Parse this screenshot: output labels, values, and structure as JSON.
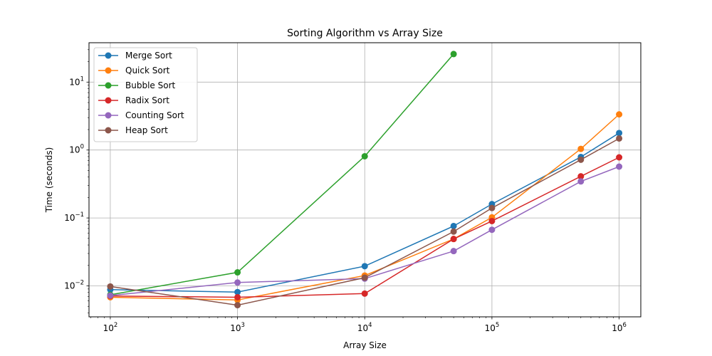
{
  "chart_data": {
    "type": "line",
    "title": "Sorting Algorithm vs Array Size",
    "xlabel": "Array Size",
    "ylabel": "Time (seconds)",
    "xscale": "log",
    "yscale": "log",
    "xlim": [
      68,
      1480000
    ],
    "ylim": [
      0.0035,
      38
    ],
    "grid": true,
    "legend_position": "top-left",
    "x_ticks": [
      {
        "value": 100,
        "base": "10",
        "exp": "2"
      },
      {
        "value": 1000,
        "base": "10",
        "exp": "3"
      },
      {
        "value": 10000,
        "base": "10",
        "exp": "4"
      },
      {
        "value": 100000,
        "base": "10",
        "exp": "5"
      },
      {
        "value": 1000000,
        "base": "10",
        "exp": "6"
      }
    ],
    "y_ticks": [
      {
        "value": 0.01,
        "base": "10",
        "exp": "−2"
      },
      {
        "value": 0.1,
        "base": "10",
        "exp": "−1"
      },
      {
        "value": 1,
        "base": "10",
        "exp": "0"
      },
      {
        "value": 10,
        "base": "10",
        "exp": "1"
      }
    ],
    "series": [
      {
        "name": "Merge Sort",
        "color": "#1f77b4",
        "x": [
          100,
          1000,
          10000,
          50000,
          100000,
          500000,
          1000000
        ],
        "y": [
          0.0088,
          0.0081,
          0.0195,
          0.076,
          0.16,
          0.79,
          1.78
        ]
      },
      {
        "name": "Quick Sort",
        "color": "#ff7f0e",
        "x": [
          100,
          1000,
          10000,
          50000,
          100000,
          500000,
          1000000
        ],
        "y": [
          0.0068,
          0.0062,
          0.0142,
          0.049,
          0.102,
          1.04,
          3.35
        ]
      },
      {
        "name": "Bubble Sort",
        "color": "#2ca02c",
        "x": [
          100,
          1000,
          10000,
          50000
        ],
        "y": [
          0.0074,
          0.0158,
          0.81,
          25.9
        ]
      },
      {
        "name": "Radix Sort",
        "color": "#d62728",
        "x": [
          100,
          1000,
          10000,
          50000,
          100000,
          500000,
          1000000
        ],
        "y": [
          0.0071,
          0.0068,
          0.0077,
          0.049,
          0.09,
          0.41,
          0.78
        ]
      },
      {
        "name": "Counting Sort",
        "color": "#9467bd",
        "x": [
          100,
          1000,
          10000,
          50000,
          100000,
          500000,
          1000000
        ],
        "y": [
          0.0072,
          0.0112,
          0.0128,
          0.0325,
          0.067,
          0.345,
          0.57
        ]
      },
      {
        "name": "Heap Sort",
        "color": "#8c564b",
        "x": [
          100,
          1000,
          10000,
          50000,
          100000,
          500000,
          1000000
        ],
        "y": [
          0.0098,
          0.0052,
          0.0132,
          0.063,
          0.14,
          0.72,
          1.48
        ]
      }
    ]
  }
}
